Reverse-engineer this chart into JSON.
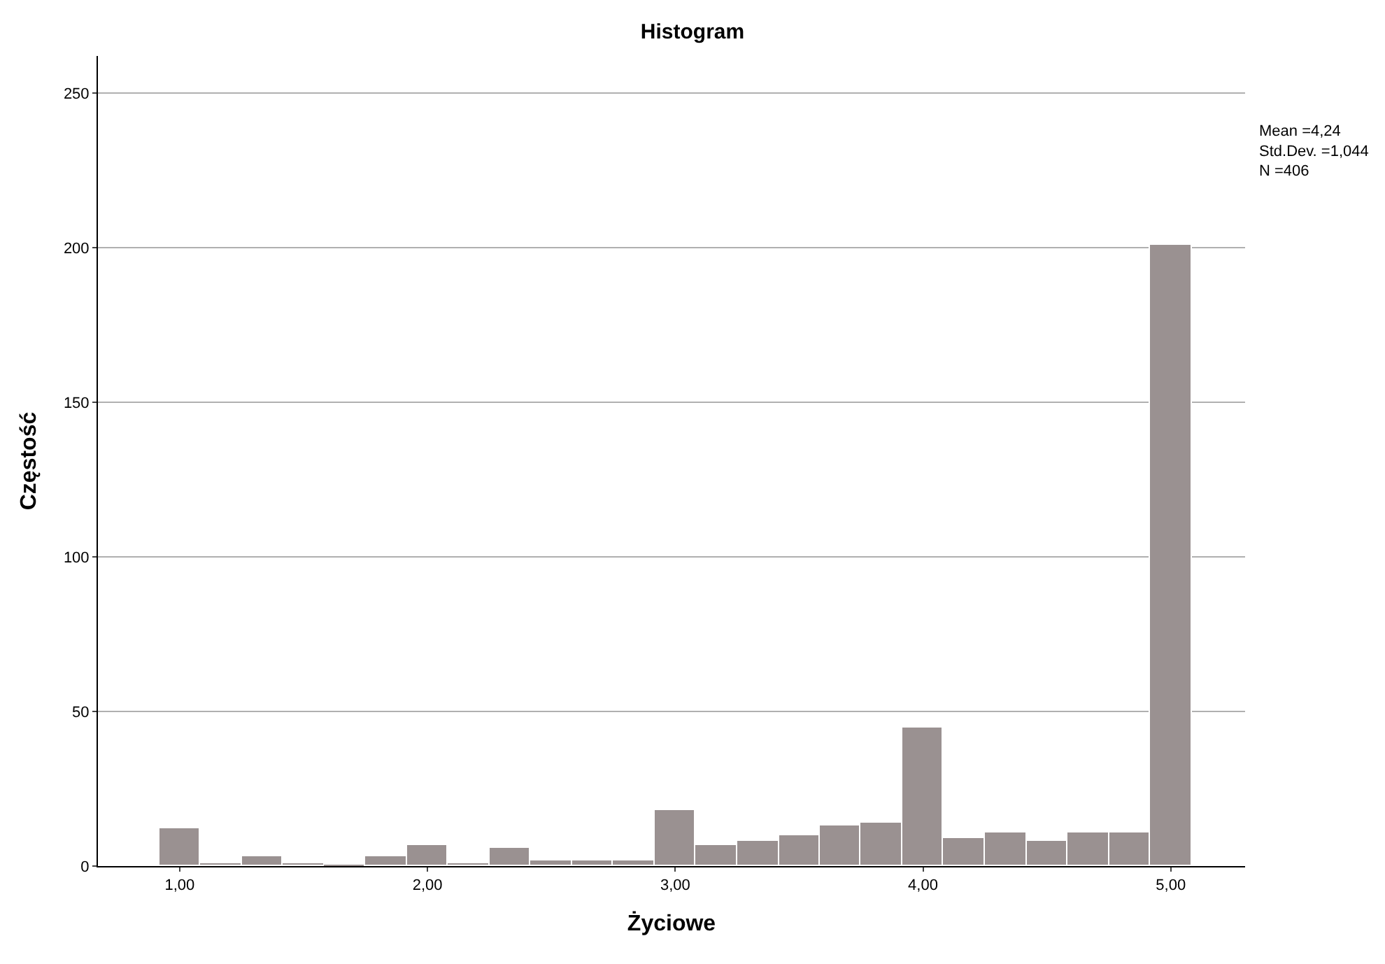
{
  "chart_data": {
    "type": "histogram",
    "title": "Histogram",
    "xlabel": "Życiowe",
    "ylabel": "Częstość",
    "bins": [
      0.917,
      1.083,
      1.25,
      1.417,
      1.583,
      1.75,
      1.917,
      2.083,
      2.25,
      2.417,
      2.583,
      2.75,
      2.917,
      3.083,
      3.25,
      3.417,
      3.583,
      3.75,
      3.917,
      4.083,
      4.25,
      4.417,
      4.583,
      4.75,
      4.917,
      5.083
    ],
    "values": [
      12,
      1,
      3,
      1,
      0,
      3,
      7,
      1,
      6,
      2,
      2,
      2,
      18,
      7,
      8,
      10,
      13,
      14,
      45,
      9,
      11,
      8,
      11,
      11,
      201
    ],
    "color": "#9a9191",
    "xlim": [
      0.67,
      5.3
    ],
    "ylim": [
      0,
      262
    ],
    "xticks": [
      {
        "value": 1,
        "label": "1,00"
      },
      {
        "value": 2,
        "label": "2,00"
      },
      {
        "value": 3,
        "label": "3,00"
      },
      {
        "value": 4,
        "label": "4,00"
      },
      {
        "value": 5,
        "label": "5,00"
      }
    ],
    "yticks": [
      0,
      50,
      100,
      150,
      200,
      250
    ],
    "grid": "y",
    "annotations": [
      "Mean =4,24\nStd.Dev. =1,044\nN =406"
    ]
  }
}
